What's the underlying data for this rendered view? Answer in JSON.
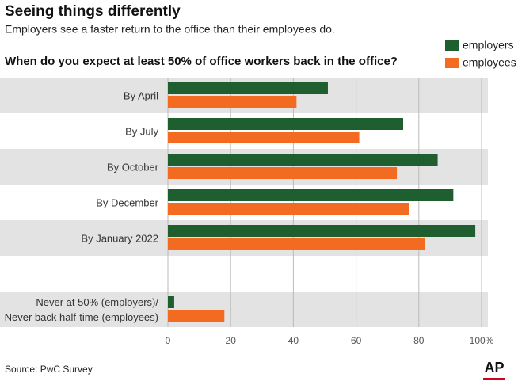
{
  "chart_data": {
    "type": "bar",
    "orientation": "horizontal",
    "title": "Seeing things differently",
    "subtitle": "Employers see a faster return to the office than their employees do.",
    "question": "When do you expect at least 50% of office workers back in the office?",
    "source": "Source: PwC Survey",
    "logo": "AP",
    "categories": [
      "By April",
      "By July",
      "By October",
      "By December",
      "By January 2022",
      null,
      "Never at 50% (employers)/\nNever back half-time (employees)"
    ],
    "series": [
      {
        "name": "employers",
        "color": "#1e5e2f",
        "values": [
          51,
          75,
          86,
          91,
          98,
          null,
          2
        ]
      },
      {
        "name": "employees",
        "color": "#f26b21",
        "values": [
          41,
          61,
          73,
          77,
          82,
          null,
          18
        ]
      }
    ],
    "xlim": [
      0,
      100
    ],
    "xticks": [
      0,
      20,
      40,
      60,
      80,
      {
        "value": 100,
        "label": "100%"
      }
    ],
    "grid": true,
    "legend": "top-right"
  }
}
